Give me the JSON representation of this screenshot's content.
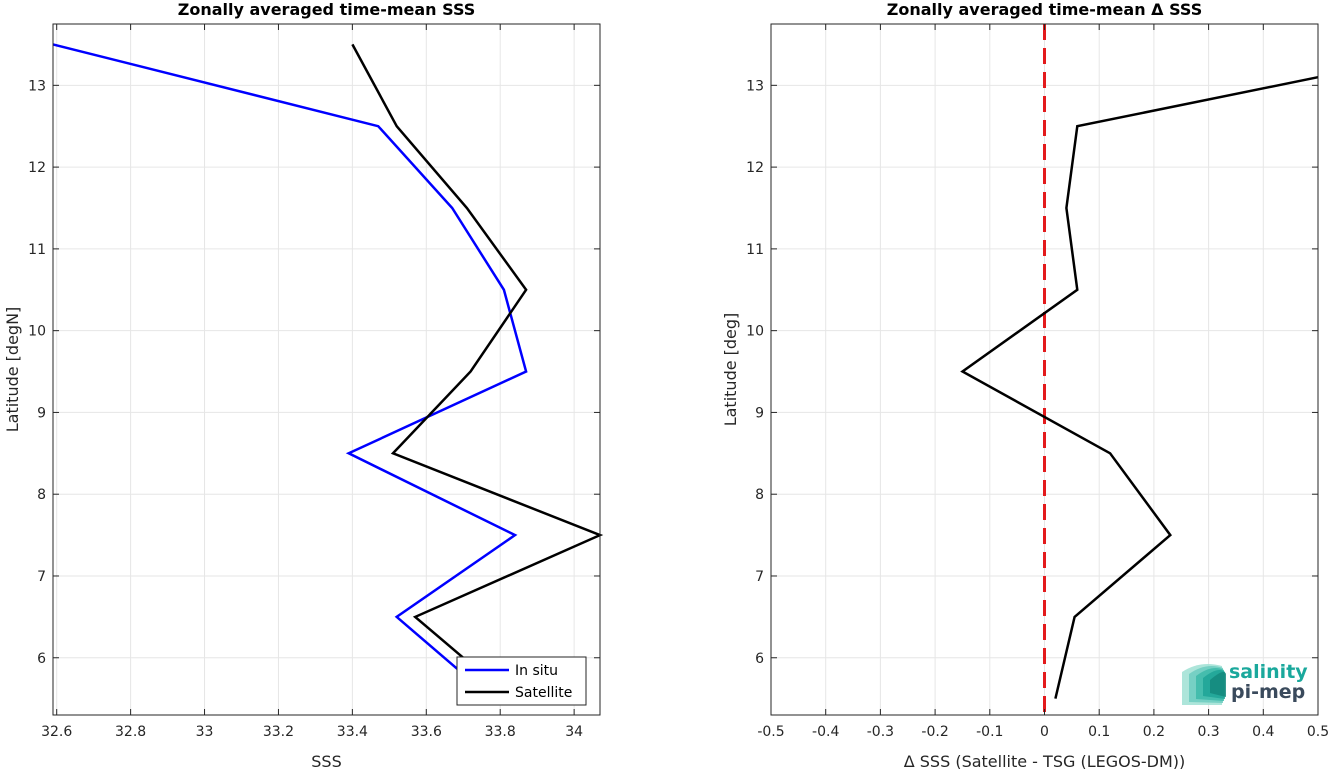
{
  "chart_data": [
    {
      "type": "line",
      "title": "Zonally averaged time-mean SSS",
      "xlabel": "SSS",
      "ylabel": "Latitude [degN]",
      "xlim": [
        32.59,
        34.07
      ],
      "ylim": [
        5.3,
        13.75
      ],
      "xticks": [
        "32.6",
        "32.8",
        "33",
        "33.2",
        "33.4",
        "33.6",
        "33.8",
        "34"
      ],
      "yticks": [
        "6",
        "7",
        "8",
        "9",
        "10",
        "11",
        "12",
        "13"
      ],
      "grid": true,
      "legend": "bottom-right",
      "series": [
        {
          "name": "In situ",
          "color": "#0000ff",
          "x": [
            32.59,
            33.47,
            33.67,
            33.81,
            33.87,
            33.39,
            33.84,
            33.52,
            33.7
          ],
          "y": [
            13.5,
            12.5,
            11.5,
            10.5,
            9.5,
            8.5,
            7.5,
            6.5,
            5.8
          ]
        },
        {
          "name": "Satellite",
          "color": "#000000",
          "x": [
            33.4,
            33.52,
            33.71,
            33.87,
            33.72,
            33.51,
            34.07,
            33.57,
            33.7
          ],
          "y": [
            13.5,
            12.5,
            11.5,
            10.5,
            9.5,
            8.5,
            7.5,
            6.5,
            6.0
          ]
        }
      ]
    },
    {
      "type": "line",
      "title": "Zonally averaged time-mean Δ SSS",
      "xlabel": "Δ SSS (Satellite - TSG (LEGOS-DM))",
      "ylabel": "Latitude [deg]",
      "xlim": [
        -0.5,
        0.5
      ],
      "ylim": [
        5.3,
        13.75
      ],
      "xticks": [
        "-0.5",
        "-0.4",
        "-0.3",
        "-0.2",
        "-0.1",
        "0",
        "0.1",
        "0.2",
        "0.3",
        "0.4",
        "0.5"
      ],
      "yticks": [
        "6",
        "7",
        "8",
        "9",
        "10",
        "11",
        "12",
        "13"
      ],
      "grid": true,
      "reference_line": {
        "x": 0,
        "color": "#e31a1c",
        "style": "dashed"
      },
      "series": [
        {
          "color": "#000000",
          "x": [
            0.5,
            0.06,
            0.04,
            0.06,
            -0.15,
            0.12,
            0.23,
            0.055,
            0.02
          ],
          "y": [
            13.1,
            12.5,
            11.5,
            10.5,
            9.5,
            8.5,
            7.5,
            6.5,
            5.5
          ]
        }
      ]
    }
  ],
  "logo": {
    "line1": "salinity",
    "line2": "pi-mep",
    "colors": [
      "#1aa89c",
      "#3a4a5c"
    ]
  }
}
